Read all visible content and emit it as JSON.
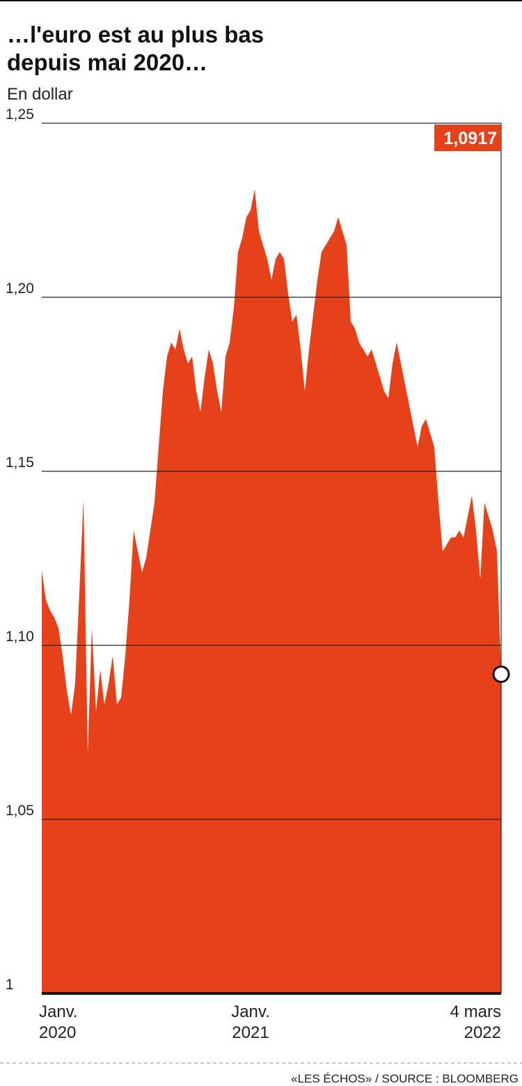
{
  "chart_data": {
    "type": "area",
    "title": "…l'euro est au plus bas depuis mai 2020…",
    "subtitle": "En dollar",
    "source": "«LES ÉCHOS» / SOURCE : BLOOMBERG",
    "color": "#e5411a",
    "grid": true,
    "ylim": [
      1,
      1.25
    ],
    "yticks": [
      1,
      {
        "value": 1.05,
        "label": "1,05"
      },
      {
        "value": 1.1,
        "label": "1,10"
      },
      {
        "value": 1.15,
        "label": "1,15"
      },
      {
        "value": 1.2,
        "label": "1,20"
      },
      {
        "value": 1.25,
        "label": "1,25"
      }
    ],
    "categories": [
      "Janv. 2020",
      null,
      null,
      null,
      null,
      null,
      null,
      null,
      null,
      null,
      null,
      null,
      null,
      null,
      null,
      null,
      null,
      null,
      null,
      null,
      null,
      null,
      null,
      null,
      null,
      null,
      null,
      null,
      null,
      null,
      null,
      null,
      null,
      null,
      null,
      null,
      null,
      null,
      null,
      null,
      null,
      null,
      null,
      null,
      null,
      null,
      null,
      null,
      null,
      null,
      "Janv. 2021",
      null,
      null,
      null,
      null,
      null,
      null,
      null,
      null,
      null,
      null,
      null,
      null,
      null,
      null,
      null,
      null,
      null,
      null,
      null,
      null,
      null,
      null,
      null,
      null,
      null,
      null,
      null,
      null,
      null,
      null,
      null,
      null,
      null,
      null,
      null,
      null,
      null,
      null,
      null,
      null,
      null,
      null,
      null,
      null,
      null,
      null,
      null,
      null,
      null,
      null,
      null,
      null,
      null,
      null,
      null,
      null,
      null,
      null,
      null,
      "4 mars 2022"
    ],
    "values": [
      1.1214,
      1.113,
      1.11,
      1.108,
      1.105,
      1.097,
      1.087,
      1.08,
      1.089,
      1.115,
      1.142,
      1.069,
      1.105,
      1.081,
      1.093,
      1.083,
      1.089,
      1.097,
      1.083,
      1.085,
      1.097,
      1.113,
      1.133,
      1.127,
      1.121,
      1.125,
      1.133,
      1.141,
      1.157,
      1.173,
      1.183,
      1.187,
      1.185,
      1.191,
      1.185,
      1.181,
      1.183,
      1.173,
      1.167,
      1.177,
      1.185,
      1.181,
      1.173,
      1.167,
      1.183,
      1.187,
      1.197,
      1.213,
      1.217,
      1.223,
      1.225,
      1.231,
      1.219,
      1.215,
      1.211,
      1.205,
      1.211,
      1.213,
      1.211,
      1.201,
      1.193,
      1.195,
      1.185,
      1.173,
      1.185,
      1.195,
      1.205,
      1.213,
      1.215,
      1.217,
      1.219,
      1.223,
      1.219,
      1.215,
      1.193,
      1.191,
      1.187,
      1.185,
      1.183,
      1.185,
      1.181,
      1.177,
      1.173,
      1.171,
      1.181,
      1.187,
      1.181,
      1.175,
      1.169,
      1.163,
      1.157,
      1.163,
      1.165,
      1.161,
      1.157,
      1.141,
      1.127,
      1.129,
      1.131,
      1.131,
      1.133,
      1.131,
      1.137,
      1.143,
      1.133,
      1.119,
      1.141,
      1.137,
      1.133,
      1.127,
      1.0917
    ],
    "value_labels": [
      null,
      null,
      null,
      null,
      null,
      null,
      null,
      null,
      null,
      null,
      null,
      null,
      null,
      null,
      null,
      null,
      null,
      null,
      null,
      null,
      null,
      null,
      null,
      null,
      null,
      null,
      null,
      null,
      null,
      null,
      null,
      null,
      null,
      null,
      null,
      null,
      null,
      null,
      null,
      null,
      null,
      null,
      null,
      null,
      null,
      null,
      null,
      null,
      null,
      null,
      null,
      null,
      null,
      null,
      null,
      null,
      null,
      null,
      null,
      null,
      null,
      null,
      null,
      null,
      null,
      null,
      null,
      null,
      null,
      null,
      null,
      null,
      null,
      null,
      null,
      null,
      null,
      null,
      null,
      null,
      null,
      null,
      null,
      null,
      null,
      null,
      null,
      null,
      null,
      null,
      null,
      null,
      null,
      null,
      null,
      null,
      null,
      null,
      null,
      null,
      null,
      null,
      null,
      null,
      null,
      null,
      null,
      null,
      null,
      null,
      "1,0917"
    ]
  }
}
